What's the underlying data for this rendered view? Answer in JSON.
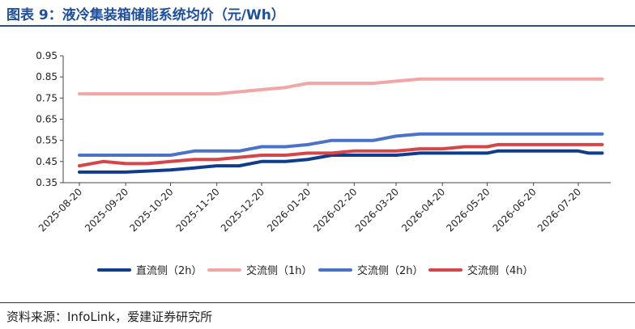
{
  "header": {
    "title": "图表 9：液冷集装箱储能系统均价（元/Wh）"
  },
  "footer": {
    "source": "资料来源：InfoLink，爱建证券研究所"
  },
  "chart_data": {
    "type": "line",
    "title": "图表 9：液冷集装箱储能系统均价（元/Wh）",
    "xlabel": "",
    "ylabel": "",
    "x": [
      "2025-08-20",
      "2025-09-20",
      "2025-10-20",
      "2025-11-20",
      "2025-12-20",
      "2026-01-20",
      "2026-02-20",
      "2026-03-20",
      "2026-04-20",
      "2026-05-20",
      "2026-06-20",
      "2026-07-20"
    ],
    "x_ticks": [
      "2025-08-20",
      "2025-09-20",
      "2025-10-20",
      "2025-11-20",
      "2025-12-20",
      "2026-01-20",
      "2026-02-20",
      "2026-03-20",
      "2026-04-20",
      "2026-05-20",
      "2026-06-20",
      "2026-07-20"
    ],
    "ylim": [
      0.35,
      0.95
    ],
    "y_ticks": [
      "0.35",
      "0.45",
      "0.55",
      "0.65",
      "0.75",
      "0.85",
      "0.95"
    ],
    "grid": false,
    "legend_position": "bottom",
    "series": [
      {
        "name": "直流侧（2h）",
        "color": "#0f3c8c",
        "points": [
          [
            "2025-08-20",
            0.4
          ],
          [
            "2025-09-20",
            0.4
          ],
          [
            "2025-10-20",
            0.41
          ],
          [
            "2025-11-05",
            0.42
          ],
          [
            "2025-11-20",
            0.43
          ],
          [
            "2025-12-05",
            0.43
          ],
          [
            "2025-12-20",
            0.45
          ],
          [
            "2026-01-05",
            0.45
          ],
          [
            "2026-01-20",
            0.46
          ],
          [
            "2026-02-05",
            0.48
          ],
          [
            "2026-02-20",
            0.48
          ],
          [
            "2026-03-05",
            0.48
          ],
          [
            "2026-03-20",
            0.48
          ],
          [
            "2026-04-05",
            0.49
          ],
          [
            "2026-04-20",
            0.49
          ],
          [
            "2026-05-05",
            0.49
          ],
          [
            "2026-05-20",
            0.49
          ],
          [
            "2026-05-27",
            0.5
          ],
          [
            "2026-06-20",
            0.5
          ],
          [
            "2026-07-05",
            0.5
          ],
          [
            "2026-07-20",
            0.5
          ],
          [
            "2026-07-27",
            0.49
          ],
          [
            "2026-08-05",
            0.49
          ]
        ]
      },
      {
        "name": "交流侧（1h）",
        "color": "#f2a6a6",
        "points": [
          [
            "2025-08-20",
            0.77
          ],
          [
            "2025-09-20",
            0.77
          ],
          [
            "2025-10-20",
            0.77
          ],
          [
            "2025-11-20",
            0.77
          ],
          [
            "2025-12-05",
            0.78
          ],
          [
            "2025-12-20",
            0.79
          ],
          [
            "2026-01-05",
            0.8
          ],
          [
            "2026-01-20",
            0.82
          ],
          [
            "2026-02-05",
            0.82
          ],
          [
            "2026-02-20",
            0.82
          ],
          [
            "2026-03-05",
            0.82
          ],
          [
            "2026-03-20",
            0.83
          ],
          [
            "2026-04-05",
            0.84
          ],
          [
            "2026-04-20",
            0.84
          ],
          [
            "2026-05-20",
            0.84
          ],
          [
            "2026-06-20",
            0.84
          ],
          [
            "2026-07-20",
            0.84
          ],
          [
            "2026-08-05",
            0.84
          ]
        ]
      },
      {
        "name": "交流侧（2h）",
        "color": "#4a72c9",
        "points": [
          [
            "2025-08-20",
            0.48
          ],
          [
            "2025-09-20",
            0.48
          ],
          [
            "2025-10-05",
            0.48
          ],
          [
            "2025-10-20",
            0.48
          ],
          [
            "2025-11-05",
            0.5
          ],
          [
            "2025-11-20",
            0.5
          ],
          [
            "2025-12-05",
            0.5
          ],
          [
            "2025-12-20",
            0.52
          ],
          [
            "2026-01-05",
            0.52
          ],
          [
            "2026-01-20",
            0.53
          ],
          [
            "2026-02-05",
            0.55
          ],
          [
            "2026-02-20",
            0.55
          ],
          [
            "2026-03-05",
            0.55
          ],
          [
            "2026-03-20",
            0.57
          ],
          [
            "2026-04-05",
            0.58
          ],
          [
            "2026-04-20",
            0.58
          ],
          [
            "2026-05-20",
            0.58
          ],
          [
            "2026-06-20",
            0.58
          ],
          [
            "2026-07-20",
            0.58
          ],
          [
            "2026-08-05",
            0.58
          ]
        ]
      },
      {
        "name": "交流侧（4h）",
        "color": "#d64548",
        "points": [
          [
            "2025-08-20",
            0.43
          ],
          [
            "2025-09-05",
            0.45
          ],
          [
            "2025-09-20",
            0.44
          ],
          [
            "2025-10-05",
            0.44
          ],
          [
            "2025-10-20",
            0.45
          ],
          [
            "2025-11-05",
            0.46
          ],
          [
            "2025-11-20",
            0.46
          ],
          [
            "2025-12-05",
            0.47
          ],
          [
            "2025-12-20",
            0.48
          ],
          [
            "2026-01-05",
            0.48
          ],
          [
            "2026-01-20",
            0.49
          ],
          [
            "2026-02-05",
            0.49
          ],
          [
            "2026-02-20",
            0.5
          ],
          [
            "2026-03-05",
            0.5
          ],
          [
            "2026-03-20",
            0.5
          ],
          [
            "2026-04-05",
            0.51
          ],
          [
            "2026-04-20",
            0.51
          ],
          [
            "2026-05-05",
            0.52
          ],
          [
            "2026-05-20",
            0.52
          ],
          [
            "2026-05-27",
            0.53
          ],
          [
            "2026-06-20",
            0.53
          ],
          [
            "2026-07-20",
            0.53
          ],
          [
            "2026-08-05",
            0.53
          ]
        ]
      }
    ]
  }
}
